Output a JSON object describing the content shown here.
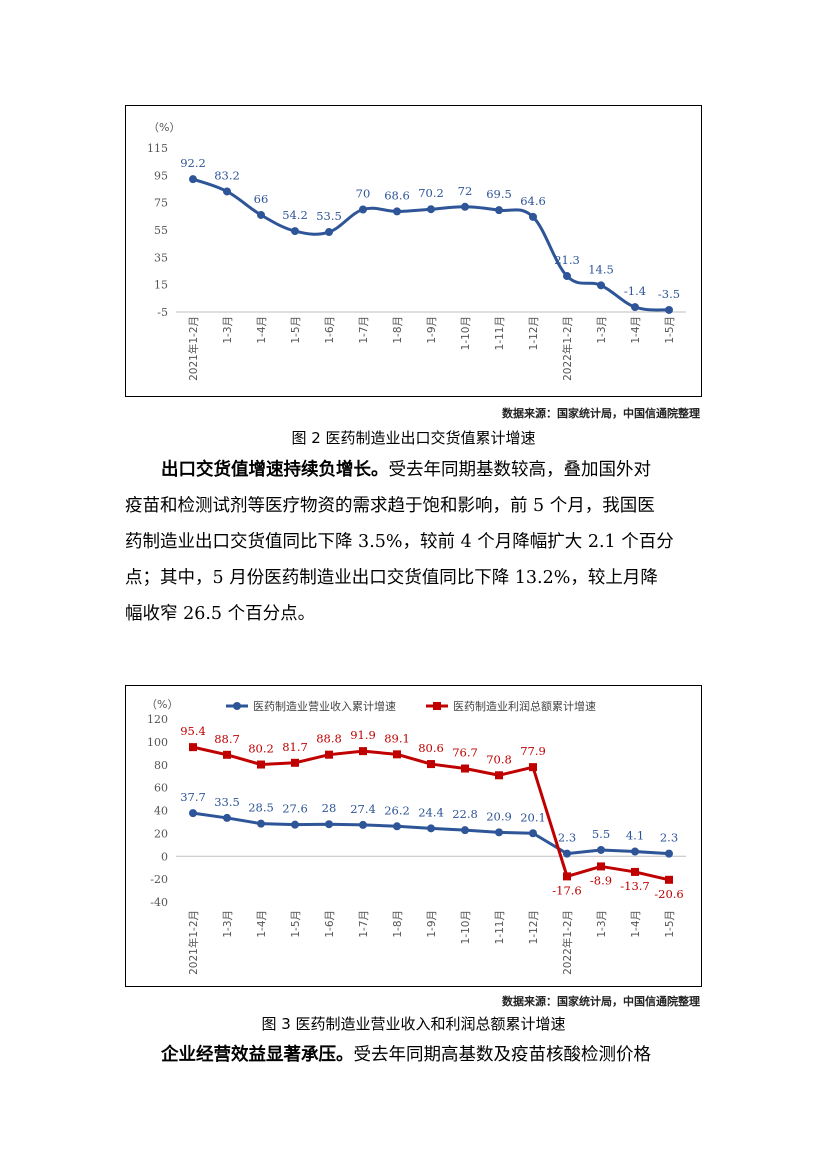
{
  "chart_data": [
    {
      "type": "line",
      "title": "",
      "ylabel": "（%）",
      "ylim": [
        -5,
        115
      ],
      "yticks": [
        115,
        95,
        75,
        55,
        35,
        15,
        -5
      ],
      "categories": [
        "2021年1-2月",
        "1-3月",
        "1-4月",
        "1-5月",
        "1-6月",
        "1-7月",
        "1-8月",
        "1-9月",
        "1-10月",
        "1-11月",
        "1-12月",
        "2022年1-2月",
        "1-3月",
        "1-4月",
        "1-5月"
      ],
      "series": [
        {
          "name": "",
          "color": "#2e5597",
          "values": [
            92.2,
            83.2,
            66,
            54.2,
            53.5,
            70,
            68.6,
            70.2,
            72,
            69.5,
            64.6,
            21.3,
            14.5,
            -1.4,
            -3.5
          ]
        }
      ]
    },
    {
      "type": "line",
      "title": "",
      "ylabel": "（%）",
      "ylim": [
        -40,
        120
      ],
      "yticks": [
        120,
        100,
        80,
        60,
        40,
        20,
        0,
        -20,
        -40
      ],
      "categories": [
        "2021年1-2月",
        "1-3月",
        "1-4月",
        "1-5月",
        "1-6月",
        "1-7月",
        "1-8月",
        "1-9月",
        "1-10月",
        "1-11月",
        "1-12月",
        "2022年1-2月",
        "1-3月",
        "1-4月",
        "1-5月"
      ],
      "legend": "top",
      "series": [
        {
          "name": "医药制造业营业收入累计增速",
          "color": "#2e5597",
          "marker": "circle",
          "values": [
            37.7,
            33.5,
            28.5,
            27.6,
            28,
            27.4,
            26.2,
            24.4,
            22.8,
            20.9,
            20.1,
            2.3,
            5.5,
            4.1,
            2.3
          ],
          "labels": [
            "37.7",
            "33.5",
            "28.5",
            "27.6",
            "28",
            "27.4",
            "26.2",
            "24.4",
            "22.8",
            "20.9",
            "20.1",
            "2.3",
            "5.5",
            "4.1",
            "2.3"
          ]
        },
        {
          "name": "医药制造业利润总额累计增速",
          "color": "#c00000",
          "marker": "square",
          "values": [
            95.4,
            88.7,
            80.2,
            81.7,
            88.8,
            91.9,
            89.1,
            80.6,
            76.7,
            70.8,
            77.9,
            -17.6,
            -8.9,
            -13.7,
            -20.6
          ],
          "labels": [
            "95.4",
            "88.7",
            "80.2",
            "81.7",
            "88.8",
            "91.9",
            "89.1",
            "80.6",
            "76.7",
            "70.8",
            "77.9",
            "-17.6",
            "-8.9",
            "-13.7",
            "-20.6"
          ]
        }
      ]
    }
  ],
  "chart1": {
    "source": "数据来源：国家统计局，中国信通院整理",
    "caption": "图 2  医药制造业出口交货值累计增速"
  },
  "chart2": {
    "source": "数据来源：国家统计局，中国信通院整理",
    "caption": "图 3  医药制造业营业收入和利润总额累计增速"
  },
  "para1": {
    "lead": "出口交货值增速持续负增长。",
    "line1": "受去年同期基数较高，叠加国外对",
    "line2": "疫苗和检测试剂等医疗物资的需求趋于饱和影响，前 5 个月，我国医",
    "line3": "药制造业出口交货值同比下降 3.5%，较前 4 个月降幅扩大 2.1 个百分",
    "line4": "点；其中，5 月份医药制造业出口交货值同比下降 13.2%，较上月降",
    "line5": "幅收窄 26.5 个百分点。"
  },
  "para2": {
    "lead": "企业经营效益显著承压。",
    "line1": "受去年同期高基数及疫苗核酸检测价格"
  }
}
